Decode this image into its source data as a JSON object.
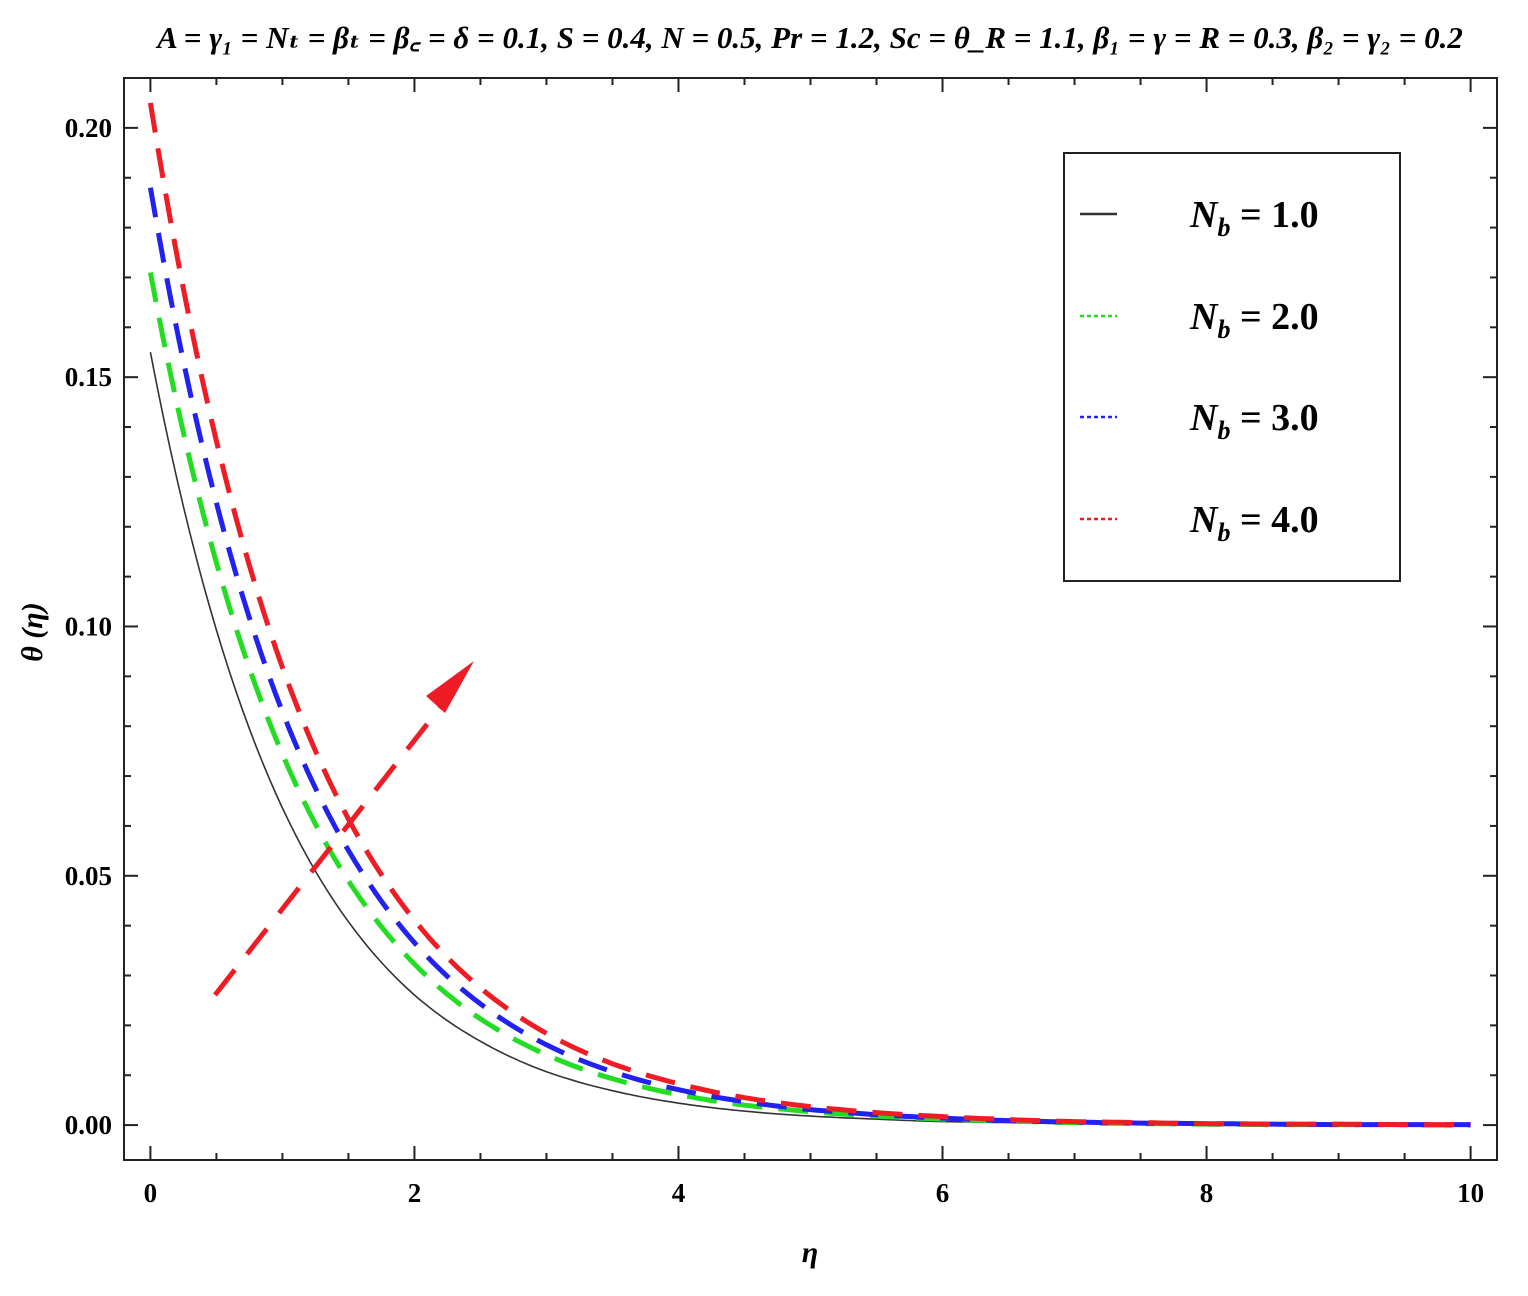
{
  "chart_data": {
    "type": "line",
    "title": "A = γ₁ = Nₜ = βₜ = β꜀ = δ = 0.1, S = 0.4, N = 0.5, Pr = 1.2, Sc = θ_R = 1.1, β₁ = γ = R = 0.3, β₂ = γ₂ = 0.2",
    "xlabel": "η",
    "ylabel": "θ (η)",
    "xlim": [
      -0.2,
      10.2
    ],
    "ylim": [
      -0.007,
      0.21
    ],
    "xticks": [
      0,
      2,
      4,
      6,
      8,
      10
    ],
    "xtick_labels": [
      "0",
      "2",
      "4",
      "6",
      "8",
      "10"
    ],
    "yticks": [
      0.0,
      0.05,
      0.1,
      0.15,
      0.2
    ],
    "ytick_labels": [
      "0.00",
      "0.05",
      "0.10",
      "0.15",
      "0.20"
    ],
    "grid": false,
    "legend_position": "top-right",
    "annotation": "arrow indicating increasing N_b",
    "x": [
      0,
      0.5,
      1,
      1.5,
      2,
      2.5,
      3,
      3.5,
      4,
      4.5,
      5,
      5.5,
      6,
      6.5,
      7,
      7.5,
      8,
      8.5,
      9,
      9.5,
      10
    ],
    "series": [
      {
        "name": "N_b = 1.0",
        "legend_symbol": "N",
        "legend_subscript": "b",
        "legend_value": " = 1.0",
        "color": "#333333",
        "style": "solid",
        "values": [
          0.155,
          0.0993,
          0.0636,
          0.0408,
          0.0261,
          0.0168,
          0.0107,
          0.0069,
          0.0044,
          0.0028,
          0.0018,
          0.0012,
          0.0007,
          0.0005,
          0.0003,
          0.0002,
          0.0001,
          0.0001,
          0.0001,
          0.0,
          0.0
        ]
      },
      {
        "name": "N_b = 2.0",
        "legend_symbol": "N",
        "legend_subscript": "b",
        "legend_value": " = 2.0",
        "color": "#22dd22",
        "style": "dashed",
        "values": [
          0.171,
          0.1128,
          0.0744,
          0.049,
          0.0323,
          0.0213,
          0.0141,
          0.0093,
          0.0061,
          0.004,
          0.0027,
          0.0018,
          0.0012,
          0.0008,
          0.0005,
          0.0003,
          0.0002,
          0.0001,
          0.0001,
          0.0001,
          0.0
        ]
      },
      {
        "name": "N_b = 3.0",
        "legend_symbol": "N",
        "legend_subscript": "b",
        "legend_value": " = 3.0",
        "color": "#2222ee",
        "style": "dashed",
        "values": [
          0.188,
          0.1248,
          0.0829,
          0.0551,
          0.0366,
          0.0243,
          0.0161,
          0.0107,
          0.0071,
          0.0047,
          0.0031,
          0.0021,
          0.0014,
          0.0009,
          0.0006,
          0.0004,
          0.0003,
          0.0002,
          0.0001,
          0.0001,
          0.0001
        ]
      },
      {
        "name": "N_b = 4.0",
        "legend_symbol": "N",
        "legend_subscript": "b",
        "legend_value": " = 4.0",
        "color": "#ee1c24",
        "style": "dashed",
        "values": [
          0.205,
          0.1372,
          0.0918,
          0.0614,
          0.0411,
          0.0275,
          0.0184,
          0.0123,
          0.0083,
          0.0055,
          0.0037,
          0.0025,
          0.0017,
          0.0011,
          0.0007,
          0.0005,
          0.0003,
          0.0002,
          0.0002,
          0.0001,
          0.0001
        ]
      }
    ]
  }
}
